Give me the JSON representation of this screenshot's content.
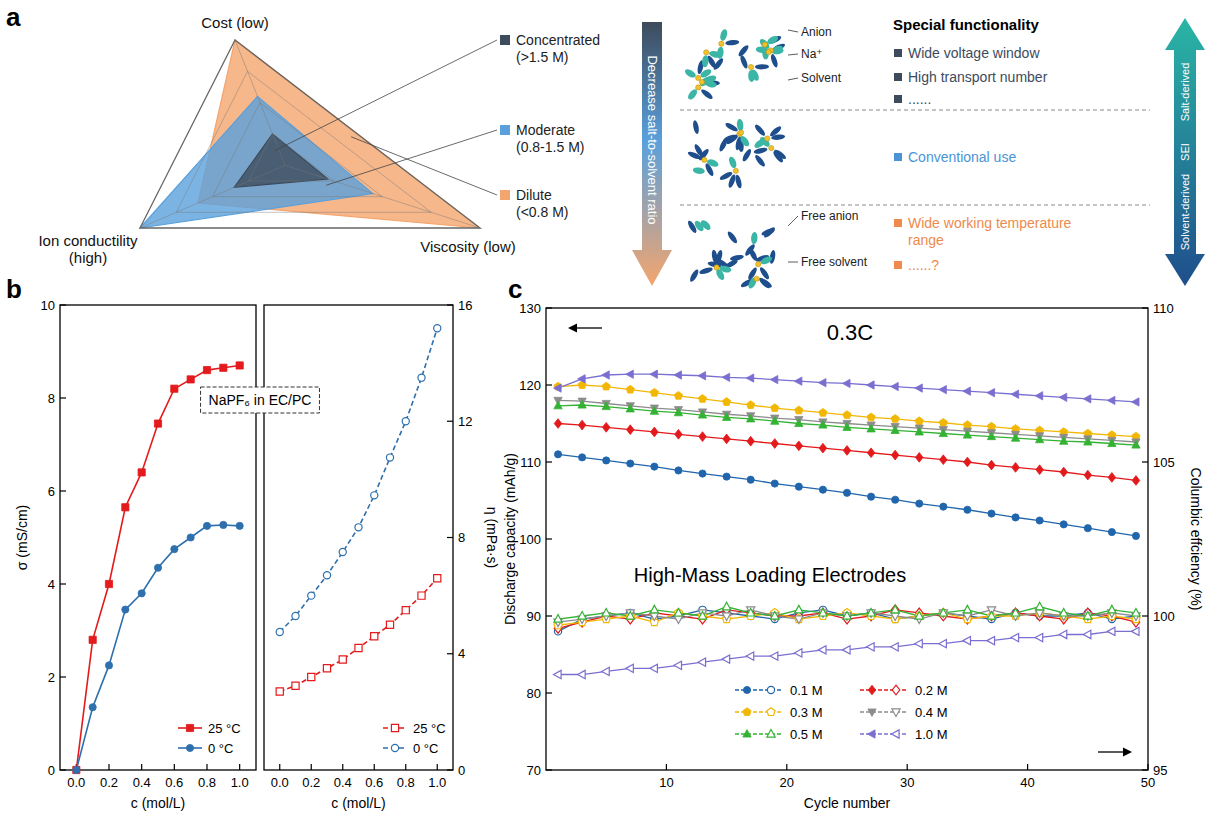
{
  "panel_labels": [
    "a",
    "b",
    "c"
  ],
  "schematic": {
    "arrow_label": "Decrease salt-to-solvent ratio",
    "molecule_labels": {
      "anion": "Anion",
      "sodium": "Na⁺",
      "solvent": "Solvent",
      "free_anion": "Free anion",
      "free_solvent": "Free solvent"
    },
    "header": "Special functionality",
    "groups": [
      {
        "color": "#3d4b5c",
        "items": [
          "Wide voltage window",
          "High transport number",
          "......"
        ]
      },
      {
        "color": "#4a94d6",
        "items": [
          "Conventional use"
        ]
      },
      {
        "color": "#ed8a4c",
        "items": [
          "Wide working temperature range",
          "......?"
        ]
      }
    ],
    "sei_arrow": {
      "top": "Salt-derived",
      "middle": "SEI",
      "bottom": "Solvent-derived"
    }
  },
  "chart_data": [
    {
      "type": "radar",
      "categories": [
        "Cost (low)",
        "Viscosity (low)",
        "Ion conductility (high)"
      ],
      "ylim": [
        0,
        1
      ],
      "yticks": [
        0.25,
        0.5,
        0.75,
        1
      ],
      "tick_labels": false,
      "legend": "right",
      "series": [
        {
          "name": "Concentrated (>1.5 M)",
          "color": "#3d4b5c",
          "values": [
            0.25,
            0.22,
            0.35
          ]
        },
        {
          "name": "Moderate (0.8-1.5 M)",
          "color": "#5aa0dc",
          "values": [
            0.55,
            0.45,
            1
          ]
        },
        {
          "name": "Dilute (<0.8 M)",
          "color": "#f4a56e",
          "values": [
            1,
            1,
            0.6
          ]
        }
      ]
    },
    {
      "type": "line",
      "x_label": "c (mol/L)",
      "y_label": "σ (mS/cm)",
      "annotation": "NaPF₆ in EC/PC",
      "x": [
        0,
        0.1,
        0.2,
        0.3,
        0.4,
        0.5,
        0.6,
        0.7,
        0.8,
        0.9,
        1
      ],
      "xlim": [
        -0.1,
        1.1
      ],
      "xticks": [
        {
          "value": 0,
          "label": "0.0"
        },
        0.2,
        0.4,
        0.6,
        0.8,
        {
          "value": 1,
          "label": "1.0"
        }
      ],
      "ylim": [
        0,
        10
      ],
      "yticks": [
        0,
        2,
        4,
        6,
        8,
        10
      ],
      "legend": "lower right",
      "series": [
        {
          "name": "25 °C",
          "color": "#e41a1c",
          "marker": "square",
          "line_style": "solid",
          "values": [
            0,
            2.8,
            4.0,
            5.65,
            6.4,
            7.45,
            8.2,
            8.4,
            8.6,
            8.65,
            8.7
          ]
        },
        {
          "name": "0 °C",
          "color": "#2e6fad",
          "marker": "circle",
          "line_style": "solid",
          "values": [
            0,
            1.35,
            2.25,
            3.45,
            3.8,
            4.35,
            4.75,
            5.0,
            5.25,
            5.27,
            5.25
          ]
        }
      ]
    },
    {
      "type": "line",
      "x_label": "c (mol/L)",
      "y2_label": "η (mPa·s)",
      "x": [
        0,
        0.1,
        0.2,
        0.3,
        0.4,
        0.5,
        0.6,
        0.7,
        0.8,
        0.9,
        1
      ],
      "xlim": [
        -0.1,
        1.1
      ],
      "xticks": [
        {
          "value": 0,
          "label": "0.0"
        },
        0.2,
        0.4,
        0.6,
        0.8,
        {
          "value": 1,
          "label": "1.0"
        }
      ],
      "y2lim": [
        0,
        16
      ],
      "y2ticks": [
        0,
        4,
        8,
        12,
        16
      ],
      "legend": "lower right",
      "series": [
        {
          "name": "25 °C",
          "color": "#e41a1c",
          "marker": "square-open",
          "line_style": "dashed",
          "axis": "y2",
          "values": [
            2.7,
            2.9,
            3.2,
            3.5,
            3.8,
            4.2,
            4.6,
            5.0,
            5.5,
            6.0,
            6.6
          ]
        },
        {
          "name": "0 °C",
          "color": "#2e6fad",
          "marker": "circle-open",
          "line_style": "dashed",
          "axis": "y2",
          "values": [
            4.75,
            5.3,
            6.0,
            6.7,
            7.5,
            8.35,
            9.45,
            10.75,
            12.0,
            13.5,
            15.2
          ]
        }
      ]
    },
    {
      "type": "line",
      "title": "0.3C",
      "annotation": "High-Mass Loading Electrodes",
      "x_label": "Cycle number",
      "y_label": "Discharge capacity (mAh/g)",
      "y2_label": "Columbic effciency (%)",
      "x": [
        1,
        3,
        5,
        7,
        9,
        11,
        13,
        15,
        17,
        19,
        21,
        23,
        25,
        27,
        29,
        31,
        33,
        35,
        37,
        39,
        41,
        43,
        45,
        47,
        49
      ],
      "xlim": [
        0,
        50
      ],
      "xticks": [
        10,
        20,
        30,
        40,
        50
      ],
      "ylim": [
        70,
        130
      ],
      "yticks": [
        70,
        80,
        90,
        100,
        110,
        120,
        130
      ],
      "y2lim": [
        95,
        110
      ],
      "y2ticks": [
        95,
        100,
        105,
        110
      ],
      "legend": "bottom",
      "series": [
        {
          "name": "0.1 M",
          "color": "#2166ac",
          "marker": "circle",
          "line_style": "solid",
          "values": [
            111.0,
            110.6,
            110.2,
            109.8,
            109.4,
            108.9,
            108.5,
            108.1,
            107.7,
            107.2,
            106.8,
            106.4,
            106.0,
            105.5,
            105.1,
            104.6,
            104.2,
            103.8,
            103.3,
            102.8,
            102.4,
            101.9,
            101.4,
            100.9,
            100.4
          ]
        },
        {
          "name": "0.2 M",
          "color": "#e31a1c",
          "marker": "diamond",
          "line_style": "solid",
          "values": [
            115.0,
            114.8,
            114.5,
            114.2,
            113.9,
            113.6,
            113.3,
            113.0,
            112.7,
            112.4,
            112.1,
            111.8,
            111.5,
            111.2,
            110.9,
            110.6,
            110.3,
            110.0,
            109.6,
            109.3,
            109.0,
            108.7,
            108.3,
            108.0,
            107.6
          ]
        },
        {
          "name": "0.3 M",
          "color": "#f2b705",
          "marker": "pentagon",
          "line_style": "solid",
          "values": [
            119.8,
            120.0,
            119.8,
            119.4,
            119.0,
            118.6,
            118.2,
            117.8,
            117.4,
            117.0,
            116.7,
            116.4,
            116.1,
            115.8,
            115.6,
            115.3,
            115.1,
            114.8,
            114.6,
            114.3,
            114.1,
            113.9,
            113.7,
            113.5,
            113.3
          ]
        },
        {
          "name": "0.4 M",
          "color": "#8c8c8c",
          "marker": "triangle-down",
          "line_style": "solid",
          "values": [
            118.0,
            117.9,
            117.6,
            117.3,
            117.0,
            116.8,
            116.5,
            116.2,
            116.0,
            115.7,
            115.5,
            115.2,
            115.0,
            114.8,
            114.6,
            114.4,
            114.2,
            114.0,
            113.8,
            113.6,
            113.4,
            113.2,
            113.0,
            112.8,
            112.6
          ]
        },
        {
          "name": "0.5 M",
          "color": "#33b233",
          "marker": "triangle-up",
          "line_style": "solid",
          "values": [
            117.3,
            117.4,
            117.2,
            116.9,
            116.6,
            116.4,
            116.1,
            115.8,
            115.6,
            115.3,
            115.0,
            114.8,
            114.5,
            114.3,
            114.1,
            113.9,
            113.7,
            113.5,
            113.3,
            113.1,
            112.9,
            112.7,
            112.6,
            112.4,
            112.2
          ]
        },
        {
          "name": "1.0 M",
          "color": "#7a6fd0",
          "marker": "triangle-left",
          "line_style": "solid",
          "values": [
            119.6,
            120.8,
            121.3,
            121.4,
            121.4,
            121.3,
            121.2,
            121.0,
            120.9,
            120.7,
            120.5,
            120.3,
            120.2,
            120.0,
            119.8,
            119.6,
            119.4,
            119.2,
            119.0,
            118.8,
            118.6,
            118.4,
            118.2,
            118.0,
            117.8
          ]
        },
        {
          "name": "0.1 M",
          "color": "#2166ac",
          "marker": "circle-open",
          "line_style": "solid",
          "axis": "y2",
          "values": [
            99.5,
            99.9,
            100.0,
            100.1,
            99.9,
            100.0,
            100.2,
            100.1,
            100.0,
            99.9,
            100.1,
            100.2,
            100.0,
            100.1,
            99.9,
            100.0,
            100.1,
            100.0,
            99.9,
            100.1,
            100.0,
            100.0,
            100.1,
            99.9,
            100.0
          ]
        },
        {
          "name": "0.2 M",
          "color": "#e31a1c",
          "marker": "diamond-open",
          "line_style": "solid",
          "axis": "y2",
          "values": [
            99.6,
            99.8,
            100.0,
            99.9,
            100.1,
            100.0,
            99.9,
            100.2,
            100.1,
            100.0,
            100.0,
            100.1,
            99.9,
            100.0,
            100.2,
            100.1,
            100.0,
            99.9,
            100.0,
            100.1,
            100.0,
            99.9,
            100.1,
            100.0,
            99.8
          ]
        },
        {
          "name": "0.3 M",
          "color": "#f2b705",
          "marker": "pentagon-open",
          "line_style": "solid",
          "axis": "y2",
          "values": [
            99.7,
            99.8,
            99.9,
            100.0,
            99.8,
            100.1,
            100.0,
            99.9,
            100.0,
            100.1,
            99.9,
            100.0,
            100.1,
            100.0,
            99.9,
            100.0,
            100.1,
            99.9,
            100.0,
            100.0,
            100.1,
            100.0,
            99.9,
            100.0,
            99.9
          ]
        },
        {
          "name": "0.4 M",
          "color": "#8c8c8c",
          "marker": "triangle-down-open",
          "line_style": "solid",
          "axis": "y2",
          "values": [
            99.8,
            99.9,
            100.0,
            100.1,
            100.0,
            99.9,
            100.1,
            100.0,
            100.2,
            100.0,
            99.9,
            100.1,
            100.0,
            100.1,
            100.0,
            99.9,
            100.1,
            100.0,
            100.2,
            100.0,
            100.1,
            100.0,
            100.0,
            100.1,
            100.0
          ]
        },
        {
          "name": "0.5 M",
          "color": "#33b233",
          "marker": "triangle-up-open",
          "line_style": "solid",
          "axis": "y2",
          "values": [
            99.9,
            100.0,
            100.1,
            100.0,
            100.2,
            100.1,
            100.0,
            100.3,
            100.1,
            100.0,
            100.2,
            100.1,
            100.0,
            100.1,
            100.2,
            100.0,
            100.1,
            100.2,
            100.0,
            100.1,
            100.3,
            100.1,
            100.0,
            100.2,
            100.1
          ]
        },
        {
          "name": "1.0 M",
          "color": "#7a6fd0",
          "marker": "triangle-left-open",
          "line_style": "solid",
          "axis": "y2",
          "values": [
            98.1,
            98.1,
            98.2,
            98.3,
            98.3,
            98.4,
            98.5,
            98.6,
            98.7,
            98.7,
            98.8,
            98.9,
            98.9,
            99.0,
            99.0,
            99.1,
            99.1,
            99.2,
            99.2,
            99.3,
            99.3,
            99.4,
            99.4,
            99.5,
            99.5
          ]
        }
      ]
    }
  ]
}
